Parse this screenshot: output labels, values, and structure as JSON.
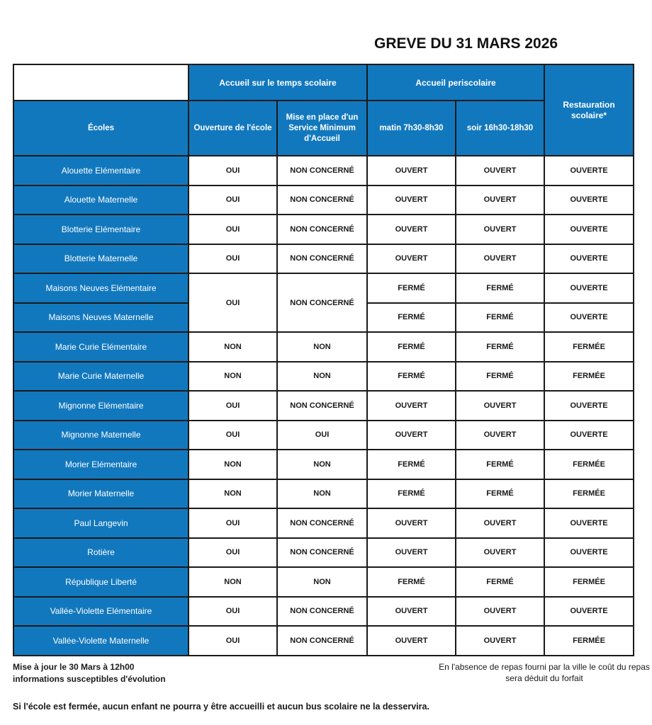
{
  "title": "GREVE DU 31 MARS 2026",
  "colors": {
    "header_blue": "#1278BE",
    "border_black": "#1a1a1a",
    "text_white": "#ffffff"
  },
  "table": {
    "group_headers": [
      "Accueil sur le temps scolaire",
      "Accueil periscolaire"
    ],
    "col_headers": [
      "Écoles",
      "Ouverture de l'école",
      "Mise en place d'un Service Minimum d'Accueil",
      "matin 7h30-8h30",
      "soir 16h30-18h30",
      "Restauration scolaire*"
    ],
    "rows": [
      {
        "school": "Alouette Elémentaire",
        "values": [
          "OUI",
          "NON CONCERNÉ",
          "OUVERT",
          "OUVERT",
          "OUVERTE"
        ]
      },
      {
        "school": "Alouette Maternelle",
        "values": [
          "OUI",
          "NON CONCERNÉ",
          "OUVERT",
          "OUVERT",
          "OUVERTE"
        ]
      },
      {
        "school": "Blotterie Elémentaire",
        "values": [
          "OUI",
          "NON CONCERNÉ",
          "OUVERT",
          "OUVERT",
          "OUVERTE"
        ]
      },
      {
        "school": "Blotterie Maternelle",
        "values": [
          "OUI",
          "NON CONCERNÉ",
          "OUVERT",
          "OUVERT",
          "OUVERTE"
        ]
      },
      {
        "school": "Maisons Neuves Elémentaire",
        "values": [
          {
            "v": "OUI",
            "rowspan": 2
          },
          {
            "v": "NON CONCERNÉ",
            "rowspan": 2
          },
          "FERMÉ",
          "FERMÉ",
          "OUVERTE"
        ]
      },
      {
        "school": "Maisons Neuves Maternelle",
        "values": [
          null,
          null,
          "FERMÉ",
          "FERMÉ",
          "OUVERTE"
        ]
      },
      {
        "school": "Marie Curie Elémentaire",
        "values": [
          "NON",
          "NON",
          "FERMÉ",
          "FERMÉ",
          "FERMÉE"
        ]
      },
      {
        "school": "Marie Curie Maternelle",
        "values": [
          "NON",
          "NON",
          "FERMÉ",
          "FERMÉ",
          "FERMÉE"
        ]
      },
      {
        "school": "Mignonne Elémentaire",
        "values": [
          "OUI",
          "NON CONCERNÉ",
          "OUVERT",
          "OUVERT",
          "OUVERTE"
        ]
      },
      {
        "school": "Mignonne Maternelle",
        "values": [
          "OUI",
          "OUI",
          "OUVERT",
          "OUVERT",
          "OUVERTE"
        ]
      },
      {
        "school": "Morier Elémentaire",
        "values": [
          "NON",
          "NON",
          "FERMÉ",
          "FERMÉ",
          "FERMÉE"
        ]
      },
      {
        "school": "Morier Maternelle",
        "values": [
          "NON",
          "NON",
          "FERMÉ",
          "FERMÉ",
          "FERMÉE"
        ]
      },
      {
        "school": "Paul Langevin",
        "values": [
          "OUI",
          "NON CONCERNÉ",
          "OUVERT",
          "OUVERT",
          "OUVERTE"
        ]
      },
      {
        "school": "Rotière",
        "values": [
          "OUI",
          "NON CONCERNÉ",
          "OUVERT",
          "OUVERT",
          "OUVERTE"
        ]
      },
      {
        "school": "République Liberté",
        "values": [
          "NON",
          "NON",
          "FERMÉ",
          "FERMÉ",
          "FERMÉE"
        ]
      },
      {
        "school": "Vallée-Violette Elémentaire",
        "values": [
          "OUI",
          "NON CONCERNÉ",
          "OUVERT",
          "OUVERT",
          "OUVERTE"
        ]
      },
      {
        "school": "Vallée-Violette Maternelle",
        "values": [
          "OUI",
          "NON CONCERNÉ",
          "OUVERT",
          "OUVERT",
          "FERMÉE"
        ]
      }
    ]
  },
  "footer": {
    "left_line1": "Mise à jour le 30 Mars à 12h00",
    "left_line2": "informations susceptibles d'évolution",
    "right": "En l'absence de repas fourni par la ville le coût du repas sera déduit du forfait",
    "note": "Si l'école est fermée, aucun enfant ne pourra y être accueilli et aucun bus scolaire ne la desservira."
  }
}
